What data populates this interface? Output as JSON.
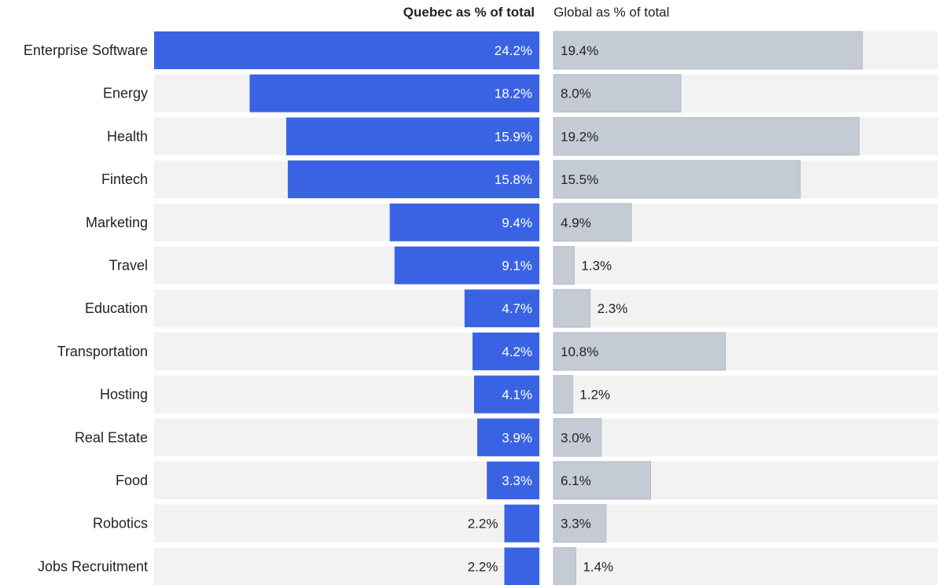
{
  "chart_data": {
    "type": "bar",
    "headers": {
      "left": "Quebec as % of total",
      "right": "Global  as % of total"
    },
    "categories": [
      "Enterprise Software",
      "Energy",
      "Health",
      "Fintech",
      "Marketing",
      "Travel",
      "Education",
      "Transportation",
      "Hosting",
      "Real Estate",
      "Food",
      "Robotics",
      "Jobs Recruitment"
    ],
    "series": [
      {
        "name": "Quebec as % of total",
        "values": [
          24.2,
          18.2,
          15.9,
          15.8,
          9.4,
          9.1,
          4.7,
          4.2,
          4.1,
          3.9,
          3.3,
          2.2,
          2.2
        ],
        "labels": [
          "24.2%",
          "18.2%",
          "15.9%",
          "15.8%",
          "9.4%",
          "9.1%",
          "4.7%",
          "4.2%",
          "4.1%",
          "3.9%",
          "3.3%",
          "2.2%",
          "2.2%"
        ],
        "color": "#3a63e4"
      },
      {
        "name": "Global  as % of total",
        "values": [
          19.4,
          8.0,
          19.2,
          15.5,
          4.9,
          1.3,
          2.3,
          10.8,
          1.2,
          3.0,
          6.1,
          3.3,
          1.4
        ],
        "labels": [
          "19.4%",
          "8.0%",
          "19.2%",
          "15.5%",
          "4.9%",
          "1.3%",
          "2.3%",
          "10.8%",
          "1.2%",
          "3.0%",
          "6.1%",
          "3.3%",
          "1.4%"
        ],
        "color": "#c5cbd4"
      }
    ],
    "track_color": "#f2f2f2",
    "grid": false,
    "legend": "none"
  }
}
